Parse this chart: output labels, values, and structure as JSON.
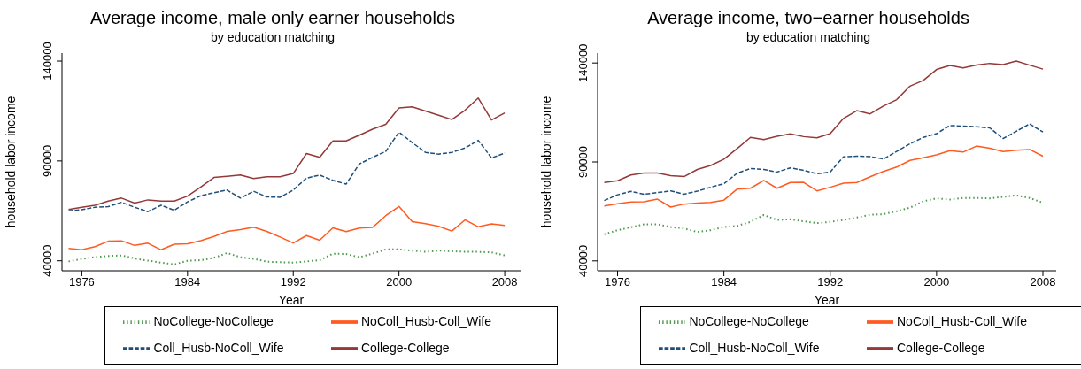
{
  "chart_data": [
    {
      "type": "line",
      "title": "Average income, male only earner households",
      "subtitle": "by education matching",
      "xlabel": "Year",
      "ylabel": "household labor income",
      "legend": "bottom",
      "xlim": [
        1974.5,
        2009.2
      ],
      "ylim": [
        35000,
        144000
      ],
      "xticks": [
        1976,
        1984,
        1992,
        2000,
        2008
      ],
      "yticks": [
        40000,
        90000,
        140000
      ],
      "x": [
        1975,
        1976,
        1977,
        1978,
        1979,
        1980,
        1981,
        1982,
        1983,
        1984,
        1985,
        1986,
        1987,
        1988,
        1989,
        1990,
        1991,
        1992,
        1993,
        1994,
        1995,
        1996,
        1997,
        1998,
        1999,
        2000,
        2001,
        2002,
        2003,
        2004,
        2005,
        2006,
        2007,
        2008
      ],
      "series": [
        {
          "name": "NoCollege-NoCollege",
          "color": "#4e9a4e",
          "line_style": "dotted",
          "values": [
            39700,
            40900,
            41900,
            42400,
            42700,
            41200,
            40100,
            39100,
            38200,
            40000,
            40300,
            41500,
            43900,
            41800,
            41000,
            39600,
            39300,
            39100,
            39700,
            40300,
            43600,
            43400,
            41800,
            43600,
            45700,
            45700,
            45100,
            44500,
            45100,
            44800,
            44500,
            44500,
            44200,
            42700
          ]
        },
        {
          "name": "Coll_Husb-NoColl_Wife",
          "color": "#1f4e79",
          "line_style": "dashed",
          "values": [
            65000,
            65600,
            66800,
            67100,
            69300,
            66800,
            64600,
            67800,
            65300,
            69500,
            72600,
            74100,
            75400,
            71400,
            74800,
            72000,
            71800,
            75400,
            81400,
            82900,
            80300,
            78400,
            88500,
            91800,
            94800,
            104400,
            99200,
            94300,
            93400,
            94300,
            96500,
            100300,
            91500,
            93900
          ]
        },
        {
          "name": "NoColl_Husb-Coll_Wife",
          "color": "#ff5a1f",
          "line_style": "solid",
          "values": [
            46200,
            45500,
            47100,
            49800,
            50000,
            47700,
            48800,
            45500,
            48300,
            48500,
            50100,
            52200,
            54700,
            55600,
            56800,
            54700,
            51900,
            48900,
            52600,
            50300,
            56500,
            54600,
            56400,
            56700,
            62600,
            67200,
            59600,
            58600,
            57300,
            54900,
            60500,
            57000,
            58500,
            57700
          ]
        },
        {
          "name": "College-College",
          "color": "#943838",
          "line_style": "solid",
          "values": [
            65700,
            66800,
            67800,
            69900,
            71400,
            68900,
            70500,
            69900,
            69900,
            72400,
            76900,
            81700,
            82300,
            83000,
            81200,
            82100,
            82100,
            83700,
            93700,
            91800,
            100000,
            100000,
            102900,
            105900,
            108300,
            116500,
            117100,
            115000,
            112900,
            110700,
            115400,
            121500,
            110500,
            114000
          ]
        }
      ]
    },
    {
      "type": "line",
      "title": "Average income, two−earner households",
      "subtitle": "by education matching",
      "xlabel": "Year",
      "ylabel": "household labor income",
      "legend": "bottom",
      "xlim": [
        1974.5,
        2009
      ],
      "ylim": [
        35000,
        145000
      ],
      "xticks": [
        1976,
        1984,
        1992,
        2000,
        2008
      ],
      "yticks": [
        40000,
        90000,
        140000
      ],
      "x": [
        1975,
        1976,
        1977,
        1978,
        1979,
        1980,
        1981,
        1982,
        1983,
        1984,
        1985,
        1986,
        1987,
        1988,
        1989,
        1990,
        1991,
        1992,
        1993,
        1994,
        1995,
        1996,
        1997,
        1998,
        1999,
        2000,
        2001,
        2002,
        2003,
        2004,
        2005,
        2006,
        2007,
        2008
      ],
      "series": [
        {
          "name": "NoCollege-NoCollege",
          "color": "#4e9a4e",
          "line_style": "dotted",
          "values": [
            53400,
            55500,
            57000,
            58500,
            58500,
            57100,
            56400,
            54600,
            55500,
            57100,
            57700,
            59700,
            63200,
            60700,
            61000,
            60000,
            59100,
            59700,
            60700,
            61900,
            63300,
            63600,
            65100,
            66900,
            70100,
            71600,
            71000,
            71800,
            71800,
            71600,
            72400,
            73100,
            71800,
            69400
          ]
        },
        {
          "name": "Coll_Husb-NoColl_Wife",
          "color": "#1f4e79",
          "line_style": "dashed",
          "values": [
            70500,
            73400,
            75100,
            73700,
            74500,
            75400,
            73700,
            75200,
            77200,
            79000,
            84300,
            86700,
            86200,
            84900,
            87000,
            85800,
            84000,
            84900,
            92600,
            92900,
            92700,
            91500,
            95300,
            99200,
            102400,
            104300,
            108400,
            108100,
            107800,
            107200,
            101800,
            105500,
            109200,
            105100
          ]
        },
        {
          "name": "NoColl_Husb-Coll_Wife",
          "color": "#ff5a1f",
          "line_style": "solid",
          "values": [
            67800,
            68900,
            69800,
            69900,
            71200,
            67200,
            68700,
            69200,
            69500,
            70700,
            76300,
            76700,
            80700,
            76700,
            79600,
            79700,
            75400,
            77200,
            79300,
            79600,
            82500,
            85200,
            87400,
            90800,
            92100,
            93600,
            95700,
            95000,
            98000,
            96900,
            95300,
            95900,
            96300,
            92900
          ]
        },
        {
          "name": "College-College",
          "color": "#943838",
          "line_style": "solid",
          "values": [
            79600,
            80500,
            83400,
            84400,
            84400,
            83100,
            82600,
            86200,
            88200,
            91400,
            96800,
            102400,
            101300,
            103000,
            104200,
            102800,
            102200,
            104300,
            112000,
            115900,
            114300,
            118200,
            121500,
            128300,
            131200,
            136700,
            138700,
            137500,
            139000,
            139800,
            139200,
            141000,
            138900,
            136900
          ]
        }
      ]
    }
  ]
}
